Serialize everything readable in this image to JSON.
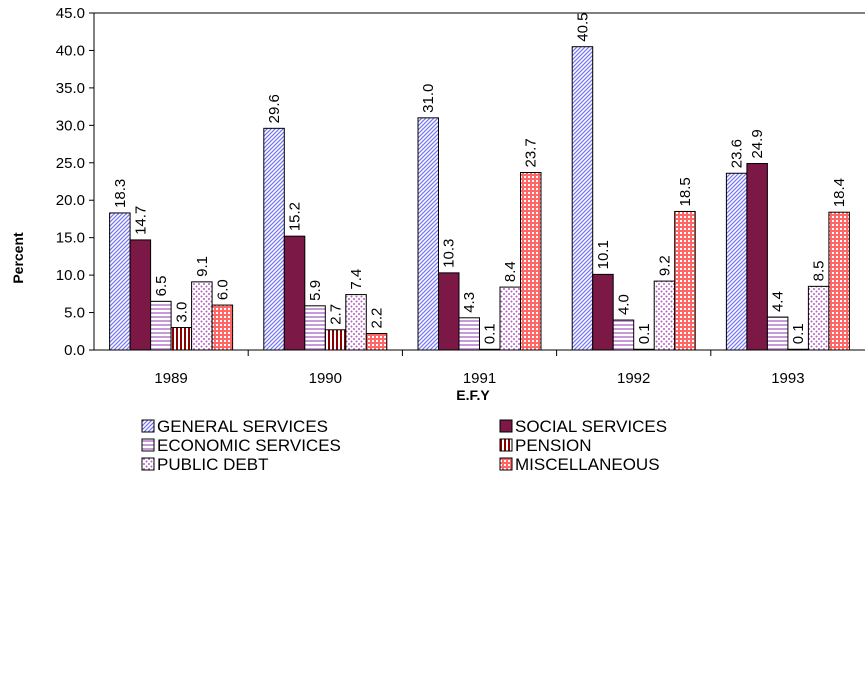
{
  "chart_data": {
    "type": "bar",
    "title": "",
    "xlabel": "E.F.Y",
    "ylabel": "Percent",
    "ylim": [
      0,
      45
    ],
    "yticks": [
      "0.0",
      "5.0",
      "10.0",
      "15.0",
      "20.0",
      "25.0",
      "30.0",
      "35.0",
      "40.0",
      "45.0"
    ],
    "categories": [
      "1989",
      "1990",
      "1991",
      "1992",
      "1993"
    ],
    "grid": false,
    "legend_position": "bottom",
    "series": [
      {
        "name": "GENERAL SERVICES",
        "pattern": "diagonal-stripes",
        "color": "#9999ff",
        "values": [
          18.3,
          29.6,
          31.0,
          40.5,
          23.6
        ],
        "labels": [
          "18.3",
          "29.6",
          "31.0",
          "40.5",
          "23.6"
        ]
      },
      {
        "name": "SOCIAL SERVICES",
        "pattern": "solid",
        "color": "#7b1845",
        "values": [
          14.7,
          15.2,
          10.3,
          10.1,
          24.9
        ],
        "labels": [
          "14.7",
          "15.2",
          "10.3",
          "10.1",
          "24.9"
        ]
      },
      {
        "name": "ECONOMIC SERVICES",
        "pattern": "horizontal-stripes",
        "color": "#c69ad6",
        "values": [
          6.5,
          5.9,
          4.3,
          4.0,
          4.4
        ],
        "labels": [
          "6.5",
          "5.9",
          "4.3",
          "4.0",
          "4.4"
        ]
      },
      {
        "name": "PENSION",
        "pattern": "vertical-stripes",
        "color": "#8b0000",
        "values": [
          3.0,
          2.7,
          0.1,
          0.1,
          0.1
        ],
        "labels": [
          "3.0",
          "2.7",
          "0.1",
          "0.1",
          "0.1"
        ]
      },
      {
        "name": "PUBLIC DEBT",
        "pattern": "dots",
        "color": "#b060c0",
        "values": [
          9.1,
          7.4,
          8.4,
          9.2,
          8.5
        ],
        "labels": [
          "9.1",
          "7.4",
          "8.4",
          "9.2",
          "8.5"
        ]
      },
      {
        "name": "MISCELLANEOUS",
        "pattern": "grid",
        "color": "#ff6666",
        "values": [
          6.0,
          2.2,
          23.7,
          18.5,
          18.4
        ],
        "labels": [
          "6.0",
          "2.2",
          "23.7",
          "18.5",
          "18.4"
        ]
      }
    ]
  }
}
